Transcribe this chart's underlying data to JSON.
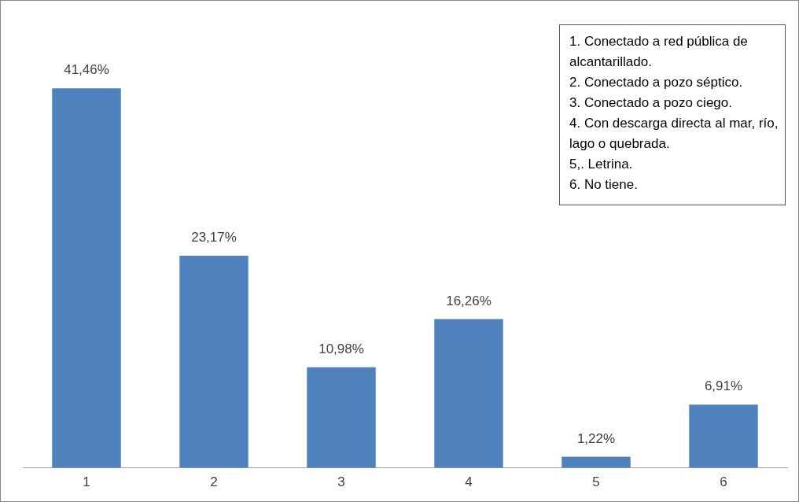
{
  "chart_data": {
    "type": "bar",
    "categories": [
      "1",
      "2",
      "3",
      "4",
      "5",
      "6"
    ],
    "values": [
      41.46,
      23.17,
      10.98,
      16.26,
      1.22,
      6.91
    ],
    "value_labels": [
      "41,46%",
      "23,17%",
      "10,98%",
      "16,26%",
      "1,22%",
      "6,91%"
    ],
    "color": "#4f81bd",
    "grid": false,
    "legend": false,
    "annotations": [
      "1. Conectado a red pública de alcantarillado.",
      "2. Conectado a pozo séptico.",
      "3. Conectado a pozo ciego.",
      "4. Con descarga directa al mar, río, lago o quebrada.",
      "5,. Letrina.",
      "6. No tiene."
    ]
  }
}
